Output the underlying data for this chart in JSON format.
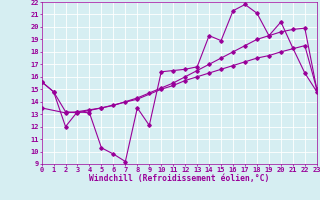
{
  "series1_x": [
    0,
    1,
    2,
    3,
    4,
    5,
    6,
    7,
    8,
    9,
    10,
    11,
    12,
    13,
    14,
    15,
    16,
    17,
    18,
    19,
    20,
    21,
    22,
    23
  ],
  "series1_y": [
    15.6,
    14.8,
    13.2,
    13.1,
    13.3,
    13.5,
    13.7,
    14.0,
    14.3,
    14.7,
    15.1,
    15.5,
    16.0,
    16.5,
    17.0,
    17.5,
    18.0,
    18.5,
    19.0,
    19.3,
    19.6,
    19.8,
    19.9,
    15.0
  ],
  "series2_x": [
    0,
    1,
    2,
    3,
    4,
    5,
    6,
    7,
    8,
    9,
    10,
    11,
    12,
    13,
    14,
    15,
    16,
    17,
    18,
    19,
    20,
    21,
    22,
    23
  ],
  "series2_y": [
    15.6,
    14.8,
    12.0,
    13.2,
    13.1,
    10.3,
    9.8,
    9.2,
    13.5,
    12.1,
    16.4,
    16.5,
    16.6,
    16.8,
    19.3,
    18.9,
    21.3,
    21.8,
    21.1,
    19.3,
    20.4,
    18.3,
    16.3,
    14.8
  ],
  "series3_x": [
    0,
    2,
    3,
    5,
    8,
    10,
    11,
    12,
    13,
    14,
    15,
    16,
    17,
    18,
    19,
    20,
    22,
    23
  ],
  "series3_y": [
    13.5,
    13.1,
    13.2,
    13.5,
    14.2,
    15.0,
    15.3,
    15.7,
    16.0,
    16.3,
    16.6,
    16.9,
    17.2,
    17.5,
    17.7,
    18.0,
    18.5,
    15.0
  ],
  "color": "#990099",
  "bg_color": "#d6eef2",
  "grid_color": "#ffffff",
  "xlabel": "Windchill (Refroidissement éolien,°C)",
  "ylim": [
    9,
    22
  ],
  "xlim": [
    0,
    23
  ],
  "yticks": [
    9,
    10,
    11,
    12,
    13,
    14,
    15,
    16,
    17,
    18,
    19,
    20,
    21,
    22
  ],
  "xticks": [
    0,
    1,
    2,
    3,
    4,
    5,
    6,
    7,
    8,
    9,
    10,
    11,
    12,
    13,
    14,
    15,
    16,
    17,
    18,
    19,
    20,
    21,
    22,
    23
  ],
  "marker": "D",
  "markersize": 1.8,
  "linewidth": 0.8,
  "xlabel_fontsize": 5.8,
  "tick_fontsize": 5.0
}
